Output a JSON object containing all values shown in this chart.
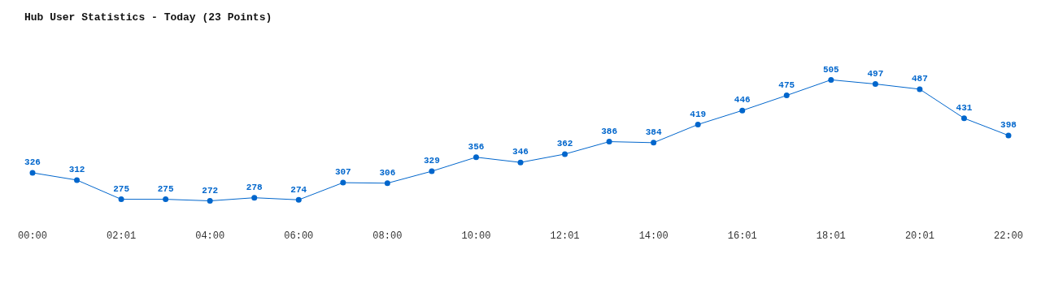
{
  "chart_data": {
    "type": "line",
    "title": "Hub User Statistics - Today (23 Points)",
    "categories": [
      "00:00",
      null,
      "02:01",
      null,
      "04:00",
      null,
      "06:00",
      null,
      "08:00",
      null,
      "10:00",
      null,
      "12:01",
      null,
      "14:00",
      null,
      "16:01",
      null,
      "18:01",
      null,
      "20:01",
      null,
      "22:00"
    ],
    "series": [
      {
        "color": "#0066cc",
        "values": [
          326,
          312,
          275,
          275,
          272,
          278,
          274,
          307,
          306,
          329,
          356,
          346,
          362,
          386,
          384,
          419,
          446,
          475,
          505,
          497,
          487,
          431,
          398
        ]
      }
    ],
    "data_labels": true,
    "marker": "circle",
    "line_style": "solid",
    "grid": false,
    "legend": false
  }
}
